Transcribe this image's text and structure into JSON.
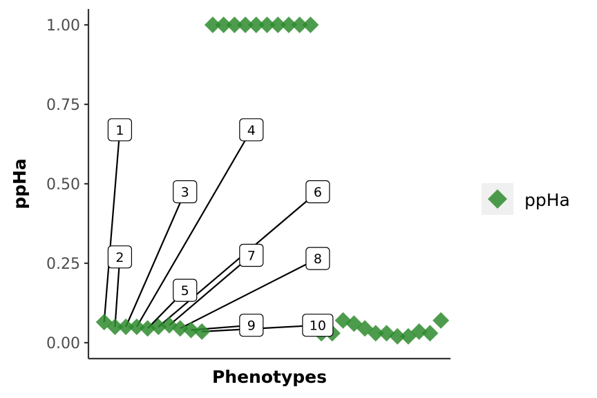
{
  "chart_data": {
    "type": "scatter",
    "xlabel": "Phenotypes",
    "ylabel": "ppHa",
    "ylim": [
      -0.05,
      1.05
    ],
    "xlim": [
      0,
      30
    ],
    "y_ticks": [
      0.0,
      0.25,
      0.5,
      0.75,
      1.0
    ],
    "y_tick_labels": [
      "0.00",
      "0.25",
      "0.50",
      "0.75",
      "1.00"
    ],
    "grid": false,
    "legend": {
      "position": "right",
      "entries": [
        "ppHa"
      ]
    },
    "colors": {
      "point": "#2e8b2e",
      "axis": "#333333",
      "leader": "#000000",
      "legend_bg": "#f0f0f0"
    },
    "series": [
      {
        "name": "ppHa",
        "marker": "diamond",
        "x": [
          1.3,
          2.2,
          3.1,
          4.0,
          4.9,
          5.8,
          6.7,
          7.6,
          8.5,
          9.4,
          10.3,
          11.2,
          12.1,
          13.0,
          13.9,
          14.8,
          15.7,
          16.6,
          17.5,
          18.4,
          19.3,
          20.2,
          21.1,
          22.0,
          22.9,
          23.8,
          24.7,
          25.6,
          26.5,
          27.4,
          28.3,
          29.2
        ],
        "y": [
          0.065,
          0.05,
          0.05,
          0.05,
          0.045,
          0.05,
          0.055,
          0.045,
          0.04,
          0.035,
          1.0,
          1.0,
          1.0,
          1.0,
          1.0,
          1.0,
          1.0,
          1.0,
          1.0,
          1.0,
          0.03,
          0.03,
          0.07,
          0.06,
          0.045,
          0.03,
          0.03,
          0.02,
          0.02,
          0.035,
          0.03,
          0.07
        ]
      }
    ],
    "labels": [
      {
        "text": "1",
        "point_x": 1.3,
        "point_y": 0.065,
        "label_x": 2.6,
        "label_y": 0.67
      },
      {
        "text": "2",
        "point_x": 2.2,
        "point_y": 0.05,
        "label_x": 2.6,
        "label_y": 0.27
      },
      {
        "text": "3",
        "point_x": 3.1,
        "point_y": 0.05,
        "label_x": 8.0,
        "label_y": 0.475
      },
      {
        "text": "4",
        "point_x": 4.0,
        "point_y": 0.05,
        "label_x": 13.5,
        "label_y": 0.67
      },
      {
        "text": "5",
        "point_x": 4.9,
        "point_y": 0.045,
        "label_x": 8.0,
        "label_y": 0.165
      },
      {
        "text": "6",
        "point_x": 5.8,
        "point_y": 0.05,
        "label_x": 19.0,
        "label_y": 0.475
      },
      {
        "text": "7",
        "point_x": 6.7,
        "point_y": 0.055,
        "label_x": 13.5,
        "label_y": 0.275
      },
      {
        "text": "8",
        "point_x": 7.6,
        "point_y": 0.045,
        "label_x": 19.0,
        "label_y": 0.265
      },
      {
        "text": "9",
        "point_x": 8.5,
        "point_y": 0.04,
        "label_x": 13.5,
        "label_y": 0.055
      },
      {
        "text": "10",
        "point_x": 9.4,
        "point_y": 0.035,
        "label_x": 19.0,
        "label_y": 0.055
      }
    ]
  }
}
